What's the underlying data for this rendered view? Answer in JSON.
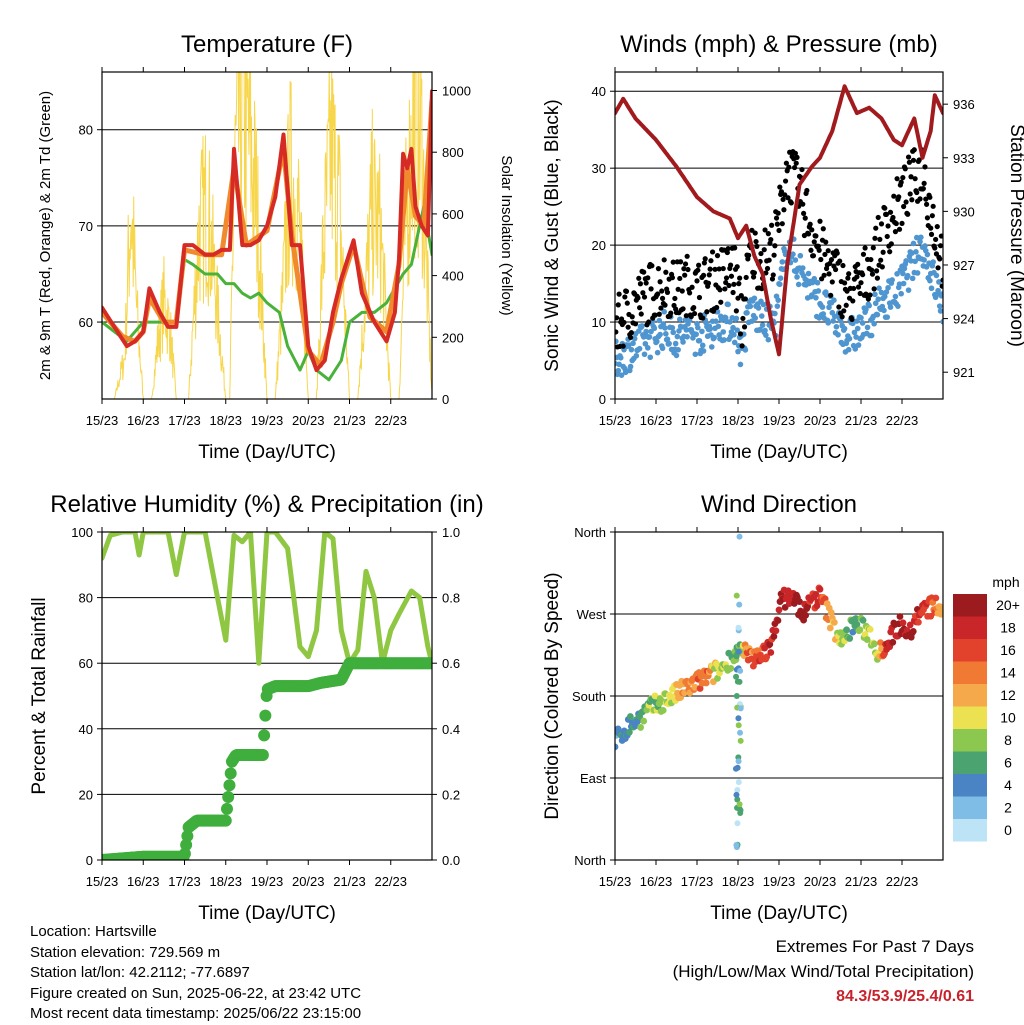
{
  "x_ticks": [
    "15/23",
    "16/23",
    "17/23",
    "18/23",
    "19/23",
    "20/23",
    "21/23",
    "22/23"
  ],
  "chart_data": [
    {
      "id": "temperature",
      "type": "line",
      "title": "Temperature (F)",
      "xlabel": "Time (Day/UTC)",
      "ylabel": "2m & 9m T (Red, Orange) & 2m Td (Green)",
      "y2label": "Solar Insolation (Yellow)",
      "ylim": [
        52,
        86
      ],
      "yticks": [
        60,
        70,
        80
      ],
      "y2lim": [
        0,
        1060
      ],
      "y2ticks": [
        0,
        200,
        400,
        600,
        800,
        1000
      ],
      "series": [
        {
          "name": "2m T",
          "color": "#d62a24",
          "axis": "left",
          "x": [
            0,
            0.3,
            0.6,
            0.8,
            1.0,
            1.15,
            1.4,
            1.6,
            1.8,
            2.0,
            2.2,
            2.5,
            2.7,
            2.9,
            3.1,
            3.2,
            3.4,
            3.6,
            3.8,
            4.0,
            4.2,
            4.4,
            4.6,
            4.8,
            5.0,
            5.2,
            5.4,
            5.6,
            5.8,
            6.1,
            6.3,
            6.6,
            6.9,
            7.1,
            7.2,
            7.3,
            7.4,
            7.5,
            7.6,
            7.75,
            7.9,
            8.0
          ],
          "y": [
            61.5,
            59.5,
            57.5,
            58,
            59,
            63.5,
            61,
            59.5,
            59.5,
            68,
            68,
            67,
            67,
            67.5,
            67.5,
            78,
            68,
            68,
            68.5,
            70,
            73,
            79.5,
            68,
            68,
            57.5,
            55,
            56,
            61,
            64.5,
            68.5,
            63,
            60,
            58,
            61,
            66.5,
            77.5,
            76,
            78,
            72,
            70,
            69,
            84
          ]
        },
        {
          "name": "9m T",
          "color": "#f08a2c",
          "axis": "left",
          "x": [
            0,
            0.5,
            0.8,
            1.0,
            1.15,
            1.5,
            1.8,
            2.0,
            2.5,
            2.9,
            3.2,
            3.5,
            4.0,
            4.4,
            4.6,
            5.0,
            5.3,
            5.6,
            5.8,
            6.1,
            6.5,
            6.9,
            7.2,
            7.4,
            7.6,
            7.8,
            8.0
          ],
          "y": [
            61,
            58.5,
            58,
            59,
            62.5,
            60,
            60,
            67.5,
            67,
            67,
            76,
            68,
            69.5,
            78,
            69,
            57,
            55.5,
            60,
            64,
            68,
            60.5,
            59,
            66,
            76,
            71,
            70,
            83
          ]
        },
        {
          "name": "2m Td",
          "color": "#48b23a",
          "axis": "left",
          "x": [
            0,
            0.3,
            0.6,
            0.8,
            1.0,
            1.2,
            1.6,
            1.8,
            2.0,
            2.2,
            2.5,
            2.8,
            3.0,
            3.2,
            3.4,
            3.6,
            3.8,
            4.0,
            4.3,
            4.5,
            4.8,
            5.0,
            5.2,
            5.5,
            5.8,
            6.0,
            6.3,
            6.6,
            6.9,
            7.1,
            7.3,
            7.5,
            7.7,
            7.8,
            8.0
          ],
          "y": [
            60,
            59,
            58,
            59,
            60,
            60,
            60,
            60,
            66.5,
            66,
            65,
            65,
            64,
            64,
            63,
            62.5,
            63,
            62,
            61,
            57.5,
            55,
            57,
            55,
            54,
            56,
            60,
            61,
            61,
            62,
            63.5,
            65,
            66,
            70,
            72,
            67
          ]
        },
        {
          "name": "Solar Insolation",
          "color": "#f7d64c",
          "axis": "right",
          "x": [
            0,
            0.3,
            0.55,
            0.7,
            0.85,
            1.0,
            1.1,
            1.2,
            1.35,
            1.5,
            1.65,
            1.8,
            2.0,
            2.1,
            2.2,
            2.35,
            2.55,
            2.75,
            3.0,
            3.1,
            3.2,
            3.35,
            3.55,
            3.75,
            4.0,
            4.1,
            4.2,
            4.35,
            4.55,
            4.75,
            5.0,
            5.1,
            5.2,
            5.35,
            5.55,
            5.75,
            6.0,
            6.1,
            6.2,
            6.35,
            6.55,
            6.75,
            7.0,
            7.1,
            7.2,
            7.35,
            7.55,
            7.75,
            8.0
          ],
          "y": [
            0,
            0,
            150,
            700,
            300,
            0,
            0,
            0,
            200,
            350,
            250,
            0,
            0,
            0,
            250,
            600,
            700,
            400,
            0,
            0,
            800,
            1000,
            950,
            700,
            0,
            0,
            0,
            300,
            800,
            700,
            0,
            0,
            0,
            500,
            900,
            700,
            0,
            0,
            0,
            300,
            700,
            600,
            0,
            0,
            0,
            600,
            1000,
            900,
            0
          ]
        }
      ]
    },
    {
      "id": "winds",
      "type": "scatter",
      "title": "Winds (mph) & Pressure (mb)",
      "xlabel": "Time (Day/UTC)",
      "ylabel": "Sonic Wind & Gust (Blue, Black)",
      "y2label": "Station Pressure (Maroon)",
      "ylim": [
        0,
        42.5
      ],
      "yticks": [
        0,
        10,
        20,
        30,
        40
      ],
      "y2lim": [
        919.5,
        937.8
      ],
      "y2ticks": [
        921,
        924,
        927,
        930,
        933,
        936
      ],
      "series": [
        {
          "name": "Sonic Wind",
          "color": "#4f95cf",
          "axis": "left",
          "x": [
            0,
            0.3,
            0.6,
            0.9,
            1.2,
            1.5,
            1.8,
            2.0,
            2.3,
            2.6,
            2.9,
            3.1,
            3.3,
            3.6,
            3.9,
            4.2,
            4.5,
            4.8,
            5.1,
            5.4,
            5.7,
            6.0,
            6.3,
            6.6,
            6.9,
            7.2,
            7.5,
            7.8,
            8.0
          ],
          "y": [
            5,
            6,
            7,
            8,
            9,
            8,
            9,
            8,
            9,
            10,
            10,
            6,
            12,
            10,
            10,
            20,
            17,
            14,
            12,
            10,
            8,
            9,
            11,
            13,
            14,
            17,
            20,
            15,
            12
          ]
        },
        {
          "name": "Gust",
          "color": "#000000",
          "axis": "left",
          "x": [
            0,
            0.3,
            0.6,
            0.9,
            1.2,
            1.5,
            1.8,
            2.0,
            2.3,
            2.6,
            2.9,
            3.1,
            3.3,
            3.6,
            3.9,
            4.2,
            4.5,
            4.8,
            5.1,
            5.4,
            5.7,
            6.0,
            6.3,
            6.6,
            6.9,
            7.2,
            7.5,
            7.8,
            8.0
          ],
          "y": [
            9,
            11,
            13,
            14,
            15,
            14,
            15,
            14,
            15,
            16,
            17,
            10,
            19,
            18,
            20,
            30,
            27,
            22,
            18,
            16,
            13,
            15,
            18,
            22,
            25,
            28,
            30,
            22,
            18
          ]
        },
        {
          "name": "Station Pressure",
          "color": "#a11a1e",
          "axis": "right",
          "x": [
            0,
            0.2,
            0.5,
            1.0,
            1.5,
            2.0,
            2.4,
            2.8,
            3.0,
            3.2,
            3.4,
            3.6,
            3.8,
            4.0,
            4.2,
            4.5,
            4.8,
            5.0,
            5.3,
            5.6,
            5.9,
            6.2,
            6.5,
            6.8,
            7.0,
            7.3,
            7.5,
            7.7,
            7.8,
            8.0
          ],
          "y": [
            935.5,
            936.3,
            935.2,
            934,
            932.5,
            930.8,
            930,
            929.6,
            928.5,
            929.2,
            927.5,
            926.5,
            924,
            922,
            927,
            931.5,
            932.5,
            933,
            934.5,
            937,
            935.5,
            935.8,
            935.2,
            934,
            933.7,
            935.2,
            933,
            934.5,
            936.5,
            935.5
          ]
        }
      ]
    },
    {
      "id": "humidity",
      "type": "line",
      "title": "Relative Humidity (%) & Precipitation (in)",
      "xlabel": "Time (Day/UTC)",
      "ylabel": "Percent & Total Rainfall",
      "ylim": [
        0,
        100
      ],
      "yticks": [
        0,
        20,
        40,
        60,
        80,
        100
      ],
      "y2lim": [
        0,
        1.0
      ],
      "y2ticks": [
        0.0,
        0.2,
        0.4,
        0.6,
        0.8,
        1.0
      ],
      "series": [
        {
          "name": "Relative Humidity",
          "color": "#8fc743",
          "axis": "left",
          "x": [
            0,
            0.2,
            0.5,
            0.8,
            0.9,
            1.0,
            1.2,
            1.4,
            1.6,
            1.8,
            2.0,
            2.2,
            2.5,
            2.8,
            3.0,
            3.2,
            3.4,
            3.6,
            3.8,
            4.0,
            4.2,
            4.5,
            4.8,
            5.0,
            5.2,
            5.4,
            5.6,
            5.8,
            6.0,
            6.2,
            6.4,
            6.6,
            6.8,
            7.0,
            7.2,
            7.5,
            7.7,
            7.9,
            8.0
          ],
          "y": [
            92,
            99,
            100,
            100,
            93,
            100,
            100,
            100,
            100,
            87,
            100,
            100,
            100,
            80,
            67,
            99,
            97,
            100,
            60,
            100,
            100,
            95,
            65,
            62,
            70,
            100,
            98,
            70,
            60,
            64,
            88,
            80,
            60,
            70,
            75,
            82,
            80,
            65,
            60
          ]
        },
        {
          "name": "Total Precipitation",
          "color": "#3fae3c",
          "axis": "right",
          "x": [
            0,
            1.0,
            2.0,
            2.1,
            2.3,
            2.5,
            3.0,
            3.15,
            3.25,
            3.5,
            3.9,
            4.0,
            4.2,
            4.6,
            5.0,
            5.3,
            5.8,
            6.0,
            6.3,
            6.6,
            7.0,
            7.5,
            8.0
          ],
          "y": [
            0,
            0.01,
            0.01,
            0.1,
            0.12,
            0.12,
            0.12,
            0.3,
            0.32,
            0.32,
            0.32,
            0.52,
            0.53,
            0.53,
            0.53,
            0.54,
            0.55,
            0.6,
            0.6,
            0.6,
            0.6,
            0.6,
            0.6
          ]
        }
      ]
    },
    {
      "id": "wind-direction",
      "type": "scatter",
      "title": "Wind Direction",
      "xlabel": "Time (Day/UTC)",
      "ylabel": "Direction (Colored By Speed)",
      "ylim": [
        0,
        360
      ],
      "yticks": [
        0,
        90,
        180,
        270,
        360
      ],
      "ytick_labels": [
        "North",
        "East",
        "South",
        "West",
        "North"
      ],
      "colorbar": {
        "title": "mph",
        "labels": [
          "20+",
          "18",
          "16",
          "14",
          "12",
          "10",
          "8",
          "6",
          "4",
          "2",
          "0"
        ],
        "colors": [
          "#9b1b1e",
          "#c9262a",
          "#e2412c",
          "#f07a34",
          "#f5a94a",
          "#ece251",
          "#8cc850",
          "#4ba36f",
          "#4a84c4",
          "#80bde6",
          "#bde3f7"
        ]
      },
      "series": [
        {
          "name": "Wind Direction",
          "x": [
            0,
            0.2,
            0.4,
            0.6,
            0.8,
            1.0,
            1.2,
            1.4,
            1.6,
            1.8,
            2.0,
            2.2,
            2.4,
            2.6,
            2.8,
            3.0,
            3.2,
            3.4,
            3.6,
            3.8,
            4.0,
            4.2,
            4.4,
            4.6,
            4.8,
            5.0,
            5.2,
            5.4,
            5.6,
            5.8,
            6.0,
            6.2,
            6.4,
            6.6,
            6.8,
            7.0,
            7.2,
            7.4,
            7.6,
            7.8,
            8.0
          ],
          "y": [
            130,
            140,
            150,
            155,
            165,
            170,
            175,
            180,
            185,
            190,
            195,
            200,
            205,
            210,
            220,
            230,
            225,
            220,
            230,
            230,
            280,
            290,
            285,
            270,
            285,
            290,
            270,
            250,
            240,
            260,
            255,
            250,
            230,
            235,
            250,
            260,
            250,
            270,
            275,
            280,
            270
          ],
          "speed": [
            3,
            4,
            5,
            6,
            7,
            8,
            9,
            10,
            12,
            13,
            14,
            15,
            10,
            8,
            7,
            6,
            14,
            15,
            16,
            18,
            19,
            19,
            20,
            19,
            18,
            16,
            14,
            10,
            8,
            6,
            7,
            8,
            10,
            18,
            19,
            20,
            20,
            18,
            16,
            14,
            12
          ]
        }
      ]
    }
  ],
  "footer": {
    "location": "Location: Hartsville",
    "elevation": "Station elevation: 729.569 m",
    "latlon": "Station lat/lon: 42.2112; -77.6897",
    "created": "Figure created on Sun, 2025-06-22, at 23:42 UTC",
    "timestamp": "Most recent data timestamp: 2025/06/22 23:15:00"
  },
  "extremes": {
    "title": "Extremes For Past 7 Days",
    "subtitle": "(High/Low/Max Wind/Total Precipitation)",
    "values": "84.3/53.9/25.4/0.61"
  }
}
